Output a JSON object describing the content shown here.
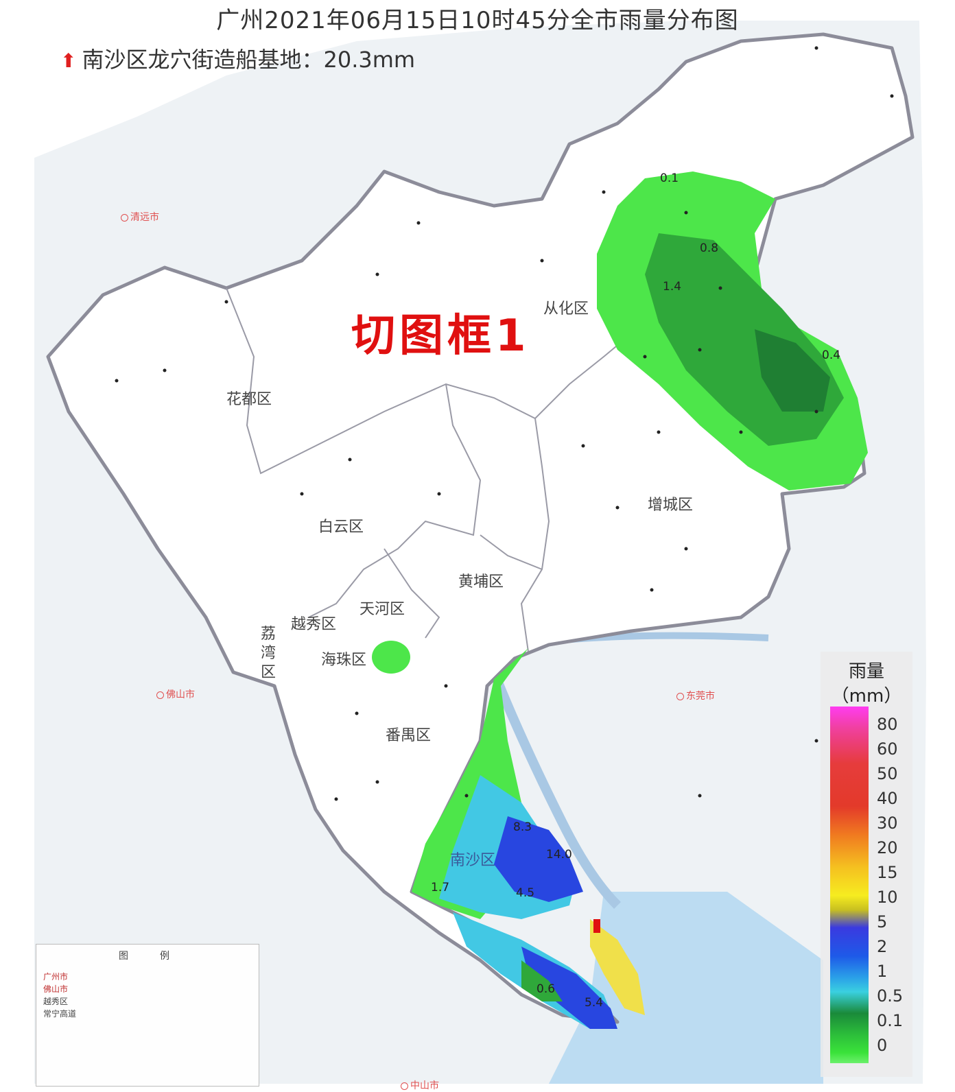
{
  "title": "广州2021年06月15日10时45分全市雨量分布图",
  "max_station": {
    "label": "南沙区龙穴街造船基地：20.3mm"
  },
  "frame_label": "切图框1",
  "districts": {
    "conghua": "从化区",
    "huadu": "花都区",
    "baiyun": "白云区",
    "zengcheng": "增城区",
    "huangpu": "黄埔区",
    "tianhe": "天河区",
    "yuexiu": "越秀区",
    "liwan1": "荔",
    "liwan2": "湾",
    "liwan3": "区",
    "haizhu": "海珠区",
    "panyu": "番禺区",
    "nansha": "南沙区"
  },
  "rain_values": [
    "0.1",
    "0.8",
    "1.4",
    "0.4",
    "8.3",
    "14.0",
    "1.7",
    "4.5",
    "0.6",
    "5.4"
  ],
  "neighbours": {
    "qingyuan": "清远市",
    "foshan": "佛山市",
    "dongguan": "东莞市",
    "zhongshan": "中山市"
  },
  "legend": {
    "title_line1": "雨量",
    "title_line2": "（mm）",
    "ticks": [
      "80",
      "60",
      "50",
      "40",
      "30",
      "20",
      "15",
      "10",
      "5",
      "2",
      "1",
      "0.5",
      "0.1",
      "0"
    ],
    "colors": {
      "green": "#3ae23a",
      "dark_green": "#1a8a3a",
      "cyan": "#3ad0e0",
      "blue": "#2030d8",
      "yellow": "#f0e040",
      "magenta": "#ff3cf0",
      "red": "#e63c3c"
    }
  },
  "map_legend": {
    "header1": "图",
    "header2": "例",
    "rows": [
      "广州市",
      "佛山市",
      "越秀区",
      "常宁高道"
    ]
  }
}
